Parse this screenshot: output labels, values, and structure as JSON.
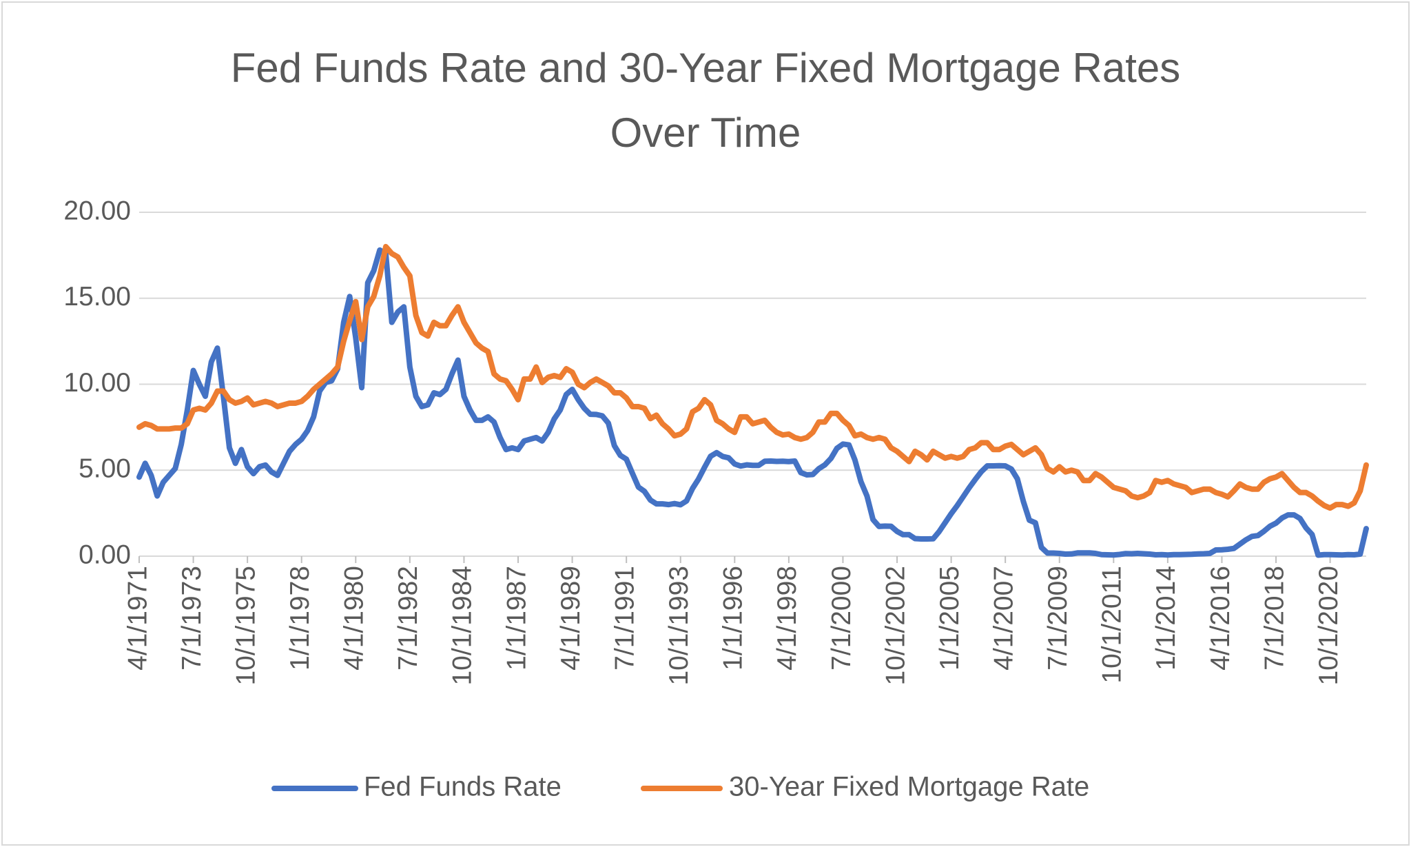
{
  "chart_data": {
    "type": "line",
    "title": "Fed Funds Rate and 30-Year Fixed Mortgage Rates Over Time",
    "categories": [
      "4/1/1971",
      null,
      null,
      null,
      null,
      null,
      null,
      null,
      null,
      "7/1/1973",
      null,
      null,
      null,
      null,
      null,
      null,
      null,
      null,
      "10/1/1975",
      null,
      null,
      null,
      null,
      null,
      null,
      null,
      null,
      "1/1/1978",
      null,
      null,
      null,
      null,
      null,
      null,
      null,
      null,
      "4/1/1980",
      null,
      null,
      null,
      null,
      null,
      null,
      null,
      null,
      "7/1/1982",
      null,
      null,
      null,
      null,
      null,
      null,
      null,
      null,
      "10/1/1984",
      null,
      null,
      null,
      null,
      null,
      null,
      null,
      null,
      "1/1/1987",
      null,
      null,
      null,
      null,
      null,
      null,
      null,
      null,
      "4/1/1989",
      null,
      null,
      null,
      null,
      null,
      null,
      null,
      null,
      "7/1/1991",
      null,
      null,
      null,
      null,
      null,
      null,
      null,
      null,
      "10/1/1993",
      null,
      null,
      null,
      null,
      null,
      null,
      null,
      null,
      "1/1/1996",
      null,
      null,
      null,
      null,
      null,
      null,
      null,
      null,
      "4/1/1998",
      null,
      null,
      null,
      null,
      null,
      null,
      null,
      null,
      "7/1/2000",
      null,
      null,
      null,
      null,
      null,
      null,
      null,
      null,
      "10/1/2002",
      null,
      null,
      null,
      null,
      null,
      null,
      null,
      null,
      "1/1/2005",
      null,
      null,
      null,
      null,
      null,
      null,
      null,
      null,
      "4/1/2007",
      null,
      null,
      null,
      null,
      null,
      null,
      null,
      null,
      "7/1/2009",
      null,
      null,
      null,
      null,
      null,
      null,
      null,
      null,
      "10/1/2011",
      null,
      null,
      null,
      null,
      null,
      null,
      null,
      null,
      "1/1/2014",
      null,
      null,
      null,
      null,
      null,
      null,
      null,
      null,
      "4/1/2016",
      null,
      null,
      null,
      null,
      null,
      null,
      null,
      null,
      "7/1/2018",
      null,
      null,
      null,
      null,
      null,
      null,
      null,
      null,
      "10/1/2020",
      null,
      null,
      null,
      null,
      null,
      null
    ],
    "series": [
      {
        "name": "Fed Funds Rate",
        "color": "#4472c4",
        "values": [
          4.6,
          5.4,
          4.7,
          3.5,
          4.3,
          4.7,
          5.1,
          6.5,
          8.5,
          10.8,
          10.0,
          9.3,
          11.3,
          12.1,
          9.3,
          6.3,
          5.4,
          6.2,
          5.2,
          4.8,
          5.2,
          5.3,
          4.9,
          4.7,
          5.4,
          6.1,
          6.5,
          6.8,
          7.3,
          8.1,
          9.6,
          10.1,
          10.2,
          10.9,
          13.6,
          15.1,
          12.7,
          9.8,
          15.9,
          16.6,
          17.8,
          17.6,
          13.6,
          14.2,
          14.5,
          11.0,
          9.3,
          8.7,
          8.8,
          9.5,
          9.4,
          9.7,
          10.6,
          11.4,
          9.3,
          8.5,
          7.9,
          7.9,
          8.1,
          7.8,
          6.9,
          6.2,
          6.3,
          6.2,
          6.7,
          6.8,
          6.9,
          6.7,
          7.2,
          7.98,
          8.5,
          9.4,
          9.7,
          9.1,
          8.6,
          8.25,
          8.24,
          8.16,
          7.74,
          6.43,
          5.86,
          5.64,
          4.82,
          4.02,
          3.77,
          3.26,
          3.04,
          3.04,
          3.0,
          3.06,
          2.99,
          3.21,
          3.94,
          4.49,
          5.17,
          5.81,
          6.02,
          5.8,
          5.72,
          5.36,
          5.24,
          5.31,
          5.28,
          5.28,
          5.52,
          5.53,
          5.51,
          5.52,
          5.5,
          5.53,
          4.86,
          4.73,
          4.75,
          5.09,
          5.31,
          5.68,
          6.27,
          6.52,
          6.47,
          5.59,
          4.33,
          3.5,
          2.13,
          1.73,
          1.75,
          1.74,
          1.44,
          1.25,
          1.25,
          1.02,
          1.0,
          1.0,
          1.01,
          1.43,
          1.95,
          2.47,
          2.94,
          3.46,
          3.98,
          4.46,
          4.91,
          5.25,
          5.25,
          5.26,
          5.25,
          5.07,
          4.5,
          3.18,
          2.09,
          1.94,
          0.51,
          0.18,
          0.18,
          0.16,
          0.12,
          0.13,
          0.19,
          0.19,
          0.19,
          0.16,
          0.09,
          0.08,
          0.07,
          0.1,
          0.15,
          0.14,
          0.16,
          0.14,
          0.12,
          0.08,
          0.09,
          0.07,
          0.09,
          0.09,
          0.1,
          0.11,
          0.13,
          0.14,
          0.16,
          0.36,
          0.37,
          0.4,
          0.45,
          0.7,
          0.95,
          1.15,
          1.2,
          1.45,
          1.74,
          1.92,
          2.22,
          2.4,
          2.4,
          2.19,
          1.64,
          1.26,
          0.06,
          0.09,
          0.09,
          0.08,
          0.07,
          0.09,
          0.08,
          0.12,
          1.6
        ]
      },
      {
        "name": "30-Year Fixed Mortgage Rate",
        "color": "#ed7d31",
        "values": [
          7.5,
          7.7,
          7.6,
          7.4,
          7.4,
          7.4,
          7.45,
          7.45,
          7.7,
          8.5,
          8.6,
          8.5,
          8.9,
          9.6,
          9.6,
          9.1,
          8.9,
          9.0,
          9.2,
          8.8,
          8.9,
          9.0,
          8.9,
          8.7,
          8.8,
          8.9,
          8.9,
          9.0,
          9.3,
          9.7,
          10.0,
          10.3,
          10.6,
          11.0,
          12.5,
          13.7,
          14.8,
          12.6,
          14.5,
          15.1,
          16.3,
          18.0,
          17.6,
          17.4,
          16.8,
          16.3,
          14.0,
          13.0,
          12.8,
          13.6,
          13.4,
          13.4,
          14.0,
          14.5,
          13.6,
          13.0,
          12.4,
          12.1,
          11.9,
          10.6,
          10.3,
          10.2,
          9.7,
          9.1,
          10.3,
          10.3,
          11.0,
          10.1,
          10.4,
          10.5,
          10.4,
          10.9,
          10.7,
          10.0,
          9.8,
          10.1,
          10.3,
          10.1,
          9.9,
          9.5,
          9.5,
          9.2,
          8.7,
          8.7,
          8.6,
          8.0,
          8.2,
          7.7,
          7.4,
          7.0,
          7.1,
          7.4,
          8.4,
          8.6,
          9.1,
          8.8,
          7.9,
          7.7,
          7.4,
          7.2,
          8.1,
          8.1,
          7.7,
          7.8,
          7.9,
          7.5,
          7.2,
          7.05,
          7.1,
          6.9,
          6.8,
          6.9,
          7.2,
          7.8,
          7.8,
          8.3,
          8.3,
          7.9,
          7.6,
          7.0,
          7.1,
          6.9,
          6.8,
          6.9,
          6.8,
          6.3,
          6.1,
          5.8,
          5.5,
          6.1,
          5.9,
          5.6,
          6.1,
          5.9,
          5.7,
          5.8,
          5.7,
          5.8,
          6.2,
          6.3,
          6.6,
          6.6,
          6.2,
          6.2,
          6.4,
          6.5,
          6.2,
          5.9,
          6.1,
          6.3,
          5.9,
          5.1,
          4.9,
          5.2,
          4.9,
          5.0,
          4.9,
          4.4,
          4.4,
          4.8,
          4.6,
          4.3,
          4.0,
          3.9,
          3.8,
          3.5,
          3.4,
          3.5,
          3.7,
          4.4,
          4.3,
          4.4,
          4.2,
          4.1,
          4.0,
          3.7,
          3.8,
          3.9,
          3.9,
          3.7,
          3.6,
          3.45,
          3.8,
          4.2,
          4.0,
          3.9,
          3.9,
          4.3,
          4.5,
          4.6,
          4.8,
          4.4,
          4.0,
          3.7,
          3.7,
          3.5,
          3.2,
          2.95,
          2.8,
          3.0,
          3.0,
          2.9,
          3.1,
          3.8,
          5.3
        ]
      }
    ],
    "ylim": [
      0,
      20
    ],
    "yticks": [
      {
        "value": 0,
        "label": "0.00"
      },
      {
        "value": 5,
        "label": "5.00"
      },
      {
        "value": 10,
        "label": "10.00"
      },
      {
        "value": 15,
        "label": "15.00"
      },
      {
        "value": 20,
        "label": "20.00"
      }
    ],
    "grid": true,
    "legend": "bottom"
  }
}
